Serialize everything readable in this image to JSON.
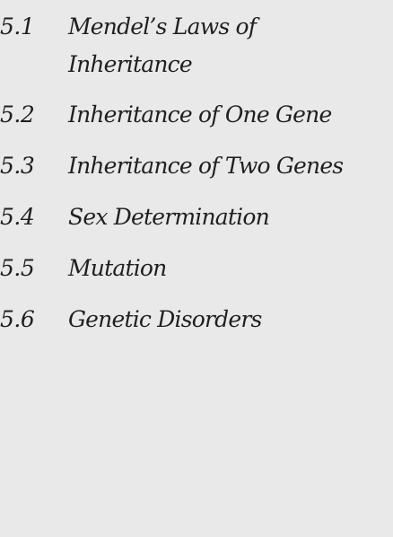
{
  "contents": {
    "items": [
      {
        "number": "5.1",
        "title": "Mendel’s Laws of Inheritance"
      },
      {
        "number": "5.2",
        "title": "Inheritance of One Gene"
      },
      {
        "number": "5.3",
        "title": "Inheritance of Two Genes"
      },
      {
        "number": "5.4",
        "title": "Sex Determination"
      },
      {
        "number": "5.5",
        "title": "Mutation"
      },
      {
        "number": "5.6",
        "title": "Genetic Disorders"
      }
    ]
  }
}
